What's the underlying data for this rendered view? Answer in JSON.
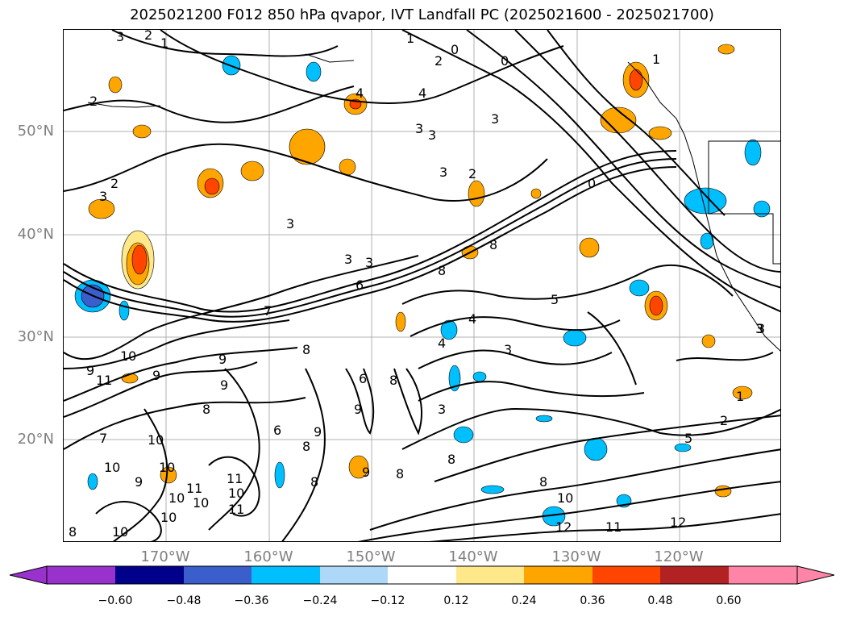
{
  "title": "2025021200 F012 850 hPa qvapor, IVT Landfall PC (2025021600 - 2025021700)",
  "lat_labels": [
    "50°N",
    "40°N",
    "30°N",
    "20°N"
  ],
  "lon_labels": [
    "170°W",
    "160°W",
    "150°W",
    "140°W",
    "130°W",
    "120°W"
  ],
  "colorbar": {
    "ticks": [
      "−0.60",
      "−0.48",
      "−0.36",
      "−0.24",
      "−0.12",
      "0.12",
      "0.24",
      "0.36",
      "0.48",
      "0.60"
    ],
    "colors": [
      "#9932cc",
      "#00008b",
      "#3a5fcd",
      "#00bfff",
      "#add8f7",
      "#ffffff",
      "#ffe88a",
      "#ffa500",
      "#ff4500",
      "#b22222",
      "#ff85a8"
    ]
  },
  "contour_labels": [
    "3",
    "2",
    "1",
    "1",
    "2",
    "0",
    "0",
    "1",
    "2",
    "4",
    "4",
    "3",
    "3",
    "3",
    "3",
    "2",
    "0",
    "2",
    "3",
    "3",
    "3",
    "3",
    "8",
    "8",
    "6",
    "7",
    "5",
    "4",
    "4",
    "3",
    "3",
    "8",
    "9",
    "10",
    "11",
    "9",
    "6",
    "9",
    "8",
    "9",
    "8",
    "6",
    "7",
    "9",
    "9",
    "3",
    "8",
    "10",
    "10",
    "10",
    "11",
    "11",
    "10",
    "10",
    "11",
    "9",
    "8",
    "10",
    "10",
    "8",
    "8",
    "8",
    "8",
    "9",
    "10",
    "12",
    "12",
    "11",
    "2",
    "1",
    "3",
    "5",
    "10"
  ]
}
